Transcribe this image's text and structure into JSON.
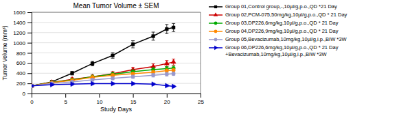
{
  "chart_data": {
    "type": "line",
    "title": "Mean Tumor Volume ± SEM",
    "x_label": "Study Days",
    "y_label": "Tumor Volume (mm³)",
    "xlim": [
      0,
      25
    ],
    "ylim": [
      0,
      1600
    ],
    "xticks": [
      0,
      5,
      10,
      15,
      20,
      25
    ],
    "yticks": [
      0,
      200,
      400,
      600,
      800,
      1000,
      1200,
      1400,
      1600
    ],
    "grid": true,
    "legend": "right",
    "x": [
      0,
      3,
      6,
      9,
      12,
      15,
      18,
      20,
      21
    ],
    "series": [
      {
        "name": "Group 01,Control group,-,10µl/g,p.o.,QD *21 Day",
        "color": "#000000",
        "marker": "square",
        "values": [
          150,
          230,
          400,
          590,
          750,
          970,
          1130,
          1270,
          1300
        ],
        "errors": [
          20,
          25,
          35,
          45,
          55,
          70,
          80,
          90,
          80
        ]
      },
      {
        "name": "Group 02,PCM-075,50mg/kg,10µl/g,p.o.,QD * 21 Day",
        "color": "#cc0000",
        "marker": "triangle-up",
        "values": [
          150,
          220,
          280,
          330,
          390,
          470,
          530,
          590,
          620
        ],
        "errors": [
          20,
          25,
          30,
          35,
          40,
          45,
          55,
          60,
          60
        ]
      },
      {
        "name": "Group 03,DP226,6mg/kg,10µl/g,p.o.,QD * 21 Day",
        "color": "#00aa00",
        "marker": "circle",
        "values": [
          150,
          220,
          270,
          330,
          380,
          430,
          470,
          490,
          500
        ],
        "errors": [
          20,
          22,
          25,
          30,
          35,
          35,
          40,
          40,
          40
        ]
      },
      {
        "name": "Group 04,DP226,9mg/kg,10µl/g,p.o.,QD * 21 Day",
        "color": "#ff8800",
        "marker": "circle",
        "values": [
          150,
          215,
          260,
          320,
          360,
          390,
          420,
          450,
          460
        ],
        "errors": [
          20,
          22,
          25,
          30,
          30,
          30,
          35,
          35,
          35
        ]
      },
      {
        "name": "Group 05,Bevacizumab,10mg/kg,10µl/g,i.p.,BIW *3W",
        "color": "#9999cc",
        "marker": "circle",
        "values": [
          150,
          200,
          230,
          270,
          300,
          330,
          360,
          380,
          390
        ],
        "errors": [
          20,
          20,
          22,
          25,
          28,
          30,
          35,
          35,
          35
        ]
      },
      {
        "name": "Group 06,DP226,6mg/kg,10µl/g,p.o.,QD * 21 Day\n+Bevacizumab,10mg/kg,10µl/g,i.p.,BIW *3W",
        "color": "#0000cc",
        "marker": "triangle-right",
        "values": [
          150,
          175,
          185,
          195,
          195,
          195,
          185,
          155,
          140
        ],
        "errors": [
          20,
          18,
          18,
          18,
          18,
          18,
          18,
          18,
          18
        ]
      }
    ]
  }
}
